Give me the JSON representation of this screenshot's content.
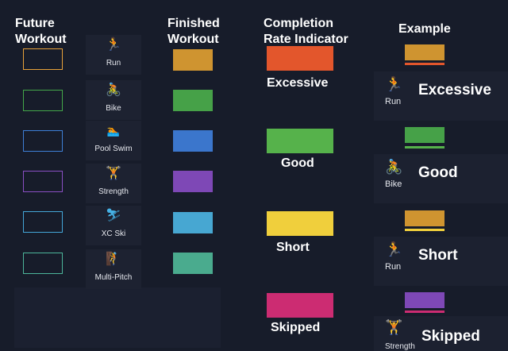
{
  "headers": {
    "future_workout": [
      "Future",
      "Workout"
    ],
    "finished_workout": [
      "Finished",
      "Workout"
    ],
    "completion_rate": [
      "Completion",
      "Rate Indicator"
    ],
    "example": "Example"
  },
  "sports": [
    {
      "label": "Run",
      "icon": "running-person-icon",
      "future_color": "#e8a13a",
      "finished_color": "#cf9430"
    },
    {
      "label": "Bike",
      "icon": "cyclist-icon",
      "future_color": "#44a84a",
      "finished_color": "#46a148"
    },
    {
      "label": "Pool Swim",
      "icon": "swimmer-icon",
      "future_color": "#3e7fd6",
      "finished_color": "#3b76cc"
    },
    {
      "label": "Strength",
      "icon": "weightlifter-icon",
      "future_color": "#8a4fc4",
      "finished_color": "#7e48b6"
    },
    {
      "label": "XC Ski",
      "icon": "xc-skier-icon",
      "future_color": "#44a6d8",
      "finished_color": "#47a7d2"
    },
    {
      "label": "Multi-Pitch",
      "icon": "climber-icon",
      "future_color": "#4cb59a",
      "finished_color": "#4aab8e"
    }
  ],
  "completion_rates": [
    {
      "label": "Excessive",
      "color": "#e3562c"
    },
    {
      "label": "Good",
      "color": "#56b24b"
    },
    {
      "label": "Short",
      "color": "#f0cf3c"
    },
    {
      "label": "Skipped",
      "color": "#cc2c72"
    }
  ],
  "examples": [
    {
      "sport": "Run",
      "rate": "Excessive",
      "icon": "running-person-icon",
      "bar_color": "#cf9430",
      "indicator_color": "#e3562c"
    },
    {
      "sport": "Bike",
      "rate": "Good",
      "icon": "cyclist-icon",
      "bar_color": "#46a148",
      "indicator_color": "#56b24b"
    },
    {
      "sport": "Run",
      "rate": "Short",
      "icon": "running-person-icon",
      "bar_color": "#cf9430",
      "indicator_color": "#f0cf3c"
    },
    {
      "sport": "Strength",
      "rate": "Skipped",
      "icon": "weightlifter-icon",
      "bar_color": "#7e48b6",
      "indicator_color": "#cc2c72"
    }
  ]
}
